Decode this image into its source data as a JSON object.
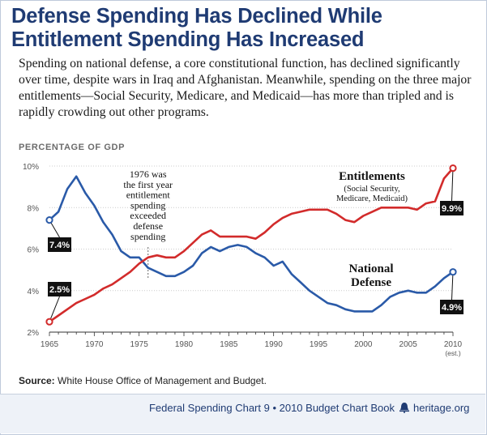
{
  "title_line1": "Defense Spending Has Declined While",
  "title_line2": "Entitlement Spending Has Increased",
  "subtitle": "Spending on national defense, a core constitutional function, has declined significantly over time, despite wars in Iraq and Afghanistan. Meanwhile, spending on the three major entitlements—Social Security, Medicare, and Medicaid—has more than tripled and is rapidly crowding out other programs.",
  "ylabel": "PERCENTAGE OF GDP",
  "source_label": "Source:",
  "source_text": " White House Office of Management and Budget.",
  "footer_text": "Federal Spending Chart 9 • 2010 Budget Chart Book",
  "footer_site": "heritage.org",
  "colors": {
    "title": "#1f3b73",
    "defense": "#2a5aa8",
    "entitlements": "#d22b2b",
    "label_box": "#111111",
    "grid": "#cccccc",
    "footer": "#1f3b73"
  },
  "chart_data": {
    "type": "line",
    "title": "",
    "xlabel": "",
    "ylabel": "PERCENTAGE OF GDP",
    "xlim": [
      1965,
      2010
    ],
    "ylim": [
      2,
      10
    ],
    "x_ticks": [
      1965,
      1970,
      1975,
      1980,
      1985,
      1990,
      1995,
      2000,
      2005,
      2010
    ],
    "x_tick_labels": [
      "1965",
      "1970",
      "1975",
      "1980",
      "1985",
      "1990",
      "1995",
      "2000",
      "2005",
      "2010"
    ],
    "x_tick_note": "(est.)",
    "y_ticks": [
      2,
      4,
      6,
      8,
      10
    ],
    "y_tick_labels": [
      "2%",
      "4%",
      "6%",
      "8%",
      "10%"
    ],
    "x": [
      1965,
      1966,
      1967,
      1968,
      1969,
      1970,
      1971,
      1972,
      1973,
      1974,
      1975,
      1976,
      1977,
      1978,
      1979,
      1980,
      1981,
      1982,
      1983,
      1984,
      1985,
      1986,
      1987,
      1988,
      1989,
      1990,
      1991,
      1992,
      1993,
      1994,
      1995,
      1996,
      1997,
      1998,
      1999,
      2000,
      2001,
      2002,
      2003,
      2004,
      2005,
      2006,
      2007,
      2008,
      2009,
      2010
    ],
    "series": [
      {
        "name": "National Defense",
        "label_lines": [
          "National",
          "Defense"
        ],
        "values": [
          7.4,
          7.8,
          8.9,
          9.5,
          8.7,
          8.1,
          7.3,
          6.7,
          5.9,
          5.6,
          5.6,
          5.1,
          4.9,
          4.7,
          4.7,
          4.9,
          5.2,
          5.8,
          6.1,
          5.9,
          6.1,
          6.2,
          6.1,
          5.8,
          5.6,
          5.2,
          5.4,
          4.8,
          4.4,
          4.0,
          3.7,
          3.4,
          3.3,
          3.1,
          3.0,
          3.0,
          3.0,
          3.3,
          3.7,
          3.9,
          4.0,
          3.9,
          3.9,
          4.2,
          4.6,
          4.9
        ],
        "start_label": "7.4%",
        "end_label": "4.9%"
      },
      {
        "name": "Entitlements",
        "label_line1": "Entitlements",
        "label_line2": "(Social Security,",
        "label_line3": "Medicare, Medicaid)",
        "values": [
          2.5,
          2.8,
          3.1,
          3.4,
          3.6,
          3.8,
          4.1,
          4.3,
          4.6,
          4.9,
          5.3,
          5.6,
          5.7,
          5.6,
          5.6,
          5.9,
          6.3,
          6.7,
          6.9,
          6.6,
          6.6,
          6.6,
          6.6,
          6.5,
          6.8,
          7.2,
          7.5,
          7.7,
          7.8,
          7.9,
          7.9,
          7.9,
          7.7,
          7.4,
          7.3,
          7.6,
          7.8,
          8.0,
          8.0,
          8.0,
          8.0,
          7.9,
          8.2,
          8.3,
          9.4,
          9.9
        ],
        "start_label": "2.5%",
        "end_label": "9.9%"
      }
    ],
    "annotation": {
      "x": 1976,
      "lines": [
        "1976 was",
        "the first year",
        "entitlement",
        "spending",
        "exceeded",
        "defense",
        "spending"
      ]
    }
  }
}
